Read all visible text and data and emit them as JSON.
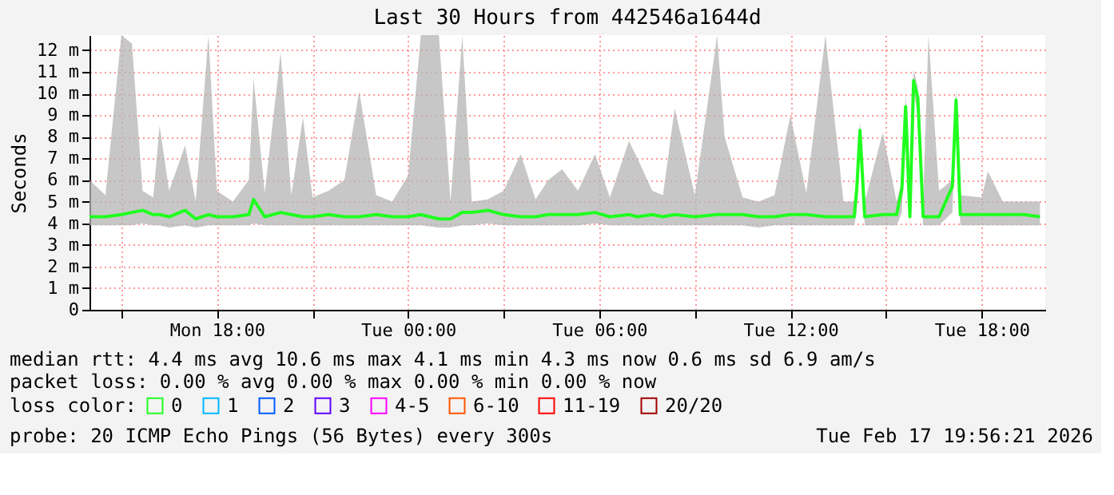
{
  "chart_data": {
    "type": "line",
    "title": "Last 30 Hours from 442546a1644d",
    "ylabel": "Seconds",
    "x": [
      "2026-02-16T14:00",
      "2026-02-16T14:30",
      "2026-02-16T15:00",
      "2026-02-16T15:20",
      "2026-02-16T15:40",
      "2026-02-16T16:00",
      "2026-02-16T16:12",
      "2026-02-16T16:30",
      "2026-02-16T17:00",
      "2026-02-16T17:20",
      "2026-02-16T17:44",
      "2026-02-16T18:00",
      "2026-02-16T18:30",
      "2026-02-16T19:00",
      "2026-02-16T19:09",
      "2026-02-16T19:30",
      "2026-02-16T20:00",
      "2026-02-16T20:20",
      "2026-02-16T20:42",
      "2026-02-16T21:00",
      "2026-02-16T21:30",
      "2026-02-16T22:00",
      "2026-02-16T22:28",
      "2026-02-16T23:00",
      "2026-02-16T23:30",
      "2026-02-17T00:00",
      "2026-02-17T00:24",
      "2026-02-17T00:58",
      "2026-02-17T01:20",
      "2026-02-17T01:42",
      "2026-02-17T02:00",
      "2026-02-17T02:30",
      "2026-02-17T03:00",
      "2026-02-17T03:32",
      "2026-02-17T04:00",
      "2026-02-17T04:24",
      "2026-02-17T04:50",
      "2026-02-17T05:20",
      "2026-02-17T05:52",
      "2026-02-17T06:20",
      "2026-02-17T06:56",
      "2026-02-17T07:12",
      "2026-02-17T07:40",
      "2026-02-17T08:00",
      "2026-02-17T08:22",
      "2026-02-17T09:00",
      "2026-02-17T09:42",
      "2026-02-17T09:56",
      "2026-02-17T10:30",
      "2026-02-17T11:00",
      "2026-02-17T11:30",
      "2026-02-17T12:00",
      "2026-02-17T12:30",
      "2026-02-17T13:06",
      "2026-02-17T13:40",
      "2026-02-17T14:00",
      "2026-02-17T14:05",
      "2026-02-17T14:11",
      "2026-02-17T14:20",
      "2026-02-17T14:54",
      "2026-02-17T15:20",
      "2026-02-17T15:30",
      "2026-02-17T15:37",
      "2026-02-17T15:45",
      "2026-02-17T15:52",
      "2026-02-17T16:00",
      "2026-02-17T16:10",
      "2026-02-17T16:20",
      "2026-02-17T16:40",
      "2026-02-17T17:05",
      "2026-02-17T17:12",
      "2026-02-17T17:20",
      "2026-02-17T18:00",
      "2026-02-17T18:12",
      "2026-02-17T18:40",
      "2026-02-17T19:20",
      "2026-02-17T19:50"
    ],
    "series": [
      {
        "name": "0",
        "color": "#20ff20",
        "values": [
          4.3,
          4.3,
          4.4,
          4.5,
          4.6,
          4.4,
          4.4,
          4.3,
          4.6,
          4.2,
          4.4,
          4.3,
          4.3,
          4.4,
          5.1,
          4.3,
          4.5,
          4.4,
          4.3,
          4.3,
          4.4,
          4.3,
          4.3,
          4.4,
          4.3,
          4.3,
          4.4,
          4.2,
          4.2,
          4.5,
          4.5,
          4.6,
          4.4,
          4.3,
          4.3,
          4.4,
          4.4,
          4.4,
          4.5,
          4.3,
          4.4,
          4.3,
          4.4,
          4.3,
          4.4,
          4.3,
          4.4,
          4.4,
          4.4,
          4.3,
          4.3,
          4.4,
          4.4,
          4.3,
          4.3,
          4.3,
          5.6,
          8.3,
          4.3,
          4.4,
          4.4,
          5.6,
          9.4,
          4.3,
          10.6,
          9.8,
          4.3,
          4.3,
          4.3,
          5.7,
          9.7,
          4.4,
          4.4,
          4.4,
          4.4,
          4.4,
          4.3
        ],
        "lower": [
          3.9,
          3.9,
          3.9,
          3.9,
          4.0,
          3.9,
          3.9,
          3.8,
          3.9,
          3.8,
          3.9,
          3.9,
          3.9,
          3.9,
          4.0,
          3.9,
          3.9,
          3.9,
          3.9,
          3.9,
          3.9,
          3.9,
          3.9,
          3.9,
          3.9,
          3.9,
          3.9,
          3.8,
          3.8,
          3.9,
          3.9,
          4.0,
          3.9,
          3.9,
          3.9,
          3.9,
          3.9,
          3.9,
          4.0,
          3.9,
          3.9,
          3.9,
          3.9,
          3.9,
          3.9,
          3.9,
          3.9,
          3.9,
          3.9,
          3.8,
          3.9,
          3.9,
          3.9,
          3.9,
          3.9,
          3.9,
          4.5,
          7.5,
          3.9,
          3.9,
          3.9,
          4.5,
          8.8,
          3.9,
          10.1,
          9.0,
          3.9,
          3.9,
          3.9,
          4.5,
          9.2,
          3.9,
          3.9,
          3.9,
          3.9,
          3.9,
          3.9
        ],
        "upper": [
          6.0,
          5.3,
          12.7,
          12.3,
          5.5,
          5.2,
          8.5,
          5.5,
          7.6,
          5.0,
          12.7,
          5.5,
          5.0,
          6.0,
          10.7,
          5.4,
          11.9,
          5.3,
          8.9,
          5.2,
          5.5,
          6.0,
          10.1,
          5.3,
          5.0,
          6.2,
          12.7,
          12.7,
          5.0,
          12.7,
          5.0,
          5.1,
          5.5,
          7.2,
          5.1,
          6.0,
          6.5,
          5.5,
          7.2,
          5.2,
          7.8,
          7.0,
          5.5,
          5.3,
          9.3,
          5.3,
          12.7,
          8.0,
          5.2,
          5.0,
          5.3,
          9.0,
          5.4,
          12.7,
          5.0,
          5.0,
          6.2,
          8.7,
          5.0,
          8.2,
          5.0,
          6.0,
          10.0,
          5.0,
          11.1,
          10.3,
          5.0,
          12.7,
          5.5,
          6.0,
          10.2,
          5.3,
          5.2,
          6.4,
          5.0,
          5.0,
          5.0
        ]
      },
      {
        "name": "1",
        "color": "#00b8ff",
        "values": [
          null,
          null,
          null,
          null,
          null,
          null,
          null,
          null,
          null,
          null,
          null,
          null,
          null,
          null,
          null,
          null,
          null,
          null,
          null,
          null,
          null,
          null,
          null,
          null,
          null,
          null,
          null,
          null,
          null,
          null,
          null,
          null,
          null,
          null,
          null,
          null,
          null,
          null,
          null,
          null,
          null,
          null,
          null,
          null,
          null,
          null,
          null,
          null,
          null,
          null,
          null,
          null,
          null,
          null,
          null,
          null,
          null,
          null,
          null,
          null,
          null,
          null,
          null,
          null,
          null,
          null,
          null,
          null,
          null,
          null,
          null,
          null,
          null,
          null,
          null,
          null,
          null
        ]
      },
      {
        "name": "2",
        "color": "#0059ff",
        "values": [
          null,
          null,
          null,
          null,
          null,
          null,
          null,
          null,
          null,
          null,
          null,
          null,
          null,
          null,
          null,
          null,
          null,
          null,
          null,
          null,
          null,
          null,
          null,
          null,
          null,
          null,
          null,
          null,
          null,
          null,
          null,
          null,
          null,
          null,
          null,
          null,
          null,
          null,
          null,
          null,
          null,
          null,
          null,
          null,
          null,
          null,
          null,
          null,
          null,
          null,
          null,
          null,
          null,
          null,
          null,
          null,
          null,
          null,
          null,
          null,
          null,
          null,
          null,
          null,
          null,
          null,
          null,
          null,
          null,
          null,
          null,
          null,
          null,
          null,
          null,
          null,
          null
        ]
      },
      {
        "name": "3",
        "color": "#5e00ff",
        "values": [
          null,
          null,
          null,
          null,
          null,
          null,
          null,
          null,
          null,
          null,
          null,
          null,
          null,
          null,
          null,
          null,
          null,
          null,
          null,
          null,
          null,
          null,
          null,
          null,
          null,
          null,
          null,
          null,
          null,
          null,
          null,
          null,
          null,
          null,
          null,
          null,
          null,
          null,
          null,
          null,
          null,
          null,
          null,
          null,
          null,
          null,
          null,
          null,
          null,
          null,
          null,
          null,
          null,
          null,
          null,
          null,
          null,
          null,
          null,
          null,
          null,
          null,
          null,
          null,
          null,
          null,
          null,
          null,
          null,
          null,
          null,
          null,
          null,
          null,
          null,
          null,
          null
        ]
      },
      {
        "name": "4-5",
        "color": "#ff00ff",
        "values": [
          null,
          null,
          null,
          null,
          null,
          null,
          null,
          null,
          null,
          null,
          null,
          null,
          null,
          null,
          null,
          null,
          null,
          null,
          null,
          null,
          null,
          null,
          null,
          null,
          null,
          null,
          null,
          null,
          null,
          null,
          null,
          null,
          null,
          null,
          null,
          null,
          null,
          null,
          null,
          null,
          null,
          null,
          null,
          null,
          null,
          null,
          null,
          null,
          null,
          null,
          null,
          null,
          null,
          null,
          null,
          null,
          null,
          null,
          null,
          null,
          null,
          null,
          null,
          null,
          null,
          null,
          null,
          null,
          null,
          null,
          null,
          null,
          null,
          null,
          null,
          null,
          null
        ]
      },
      {
        "name": "6-10",
        "color": "#ff5500",
        "values": [
          null,
          null,
          null,
          null,
          null,
          null,
          null,
          null,
          null,
          null,
          null,
          null,
          null,
          null,
          null,
          null,
          null,
          null,
          null,
          null,
          null,
          null,
          null,
          null,
          null,
          null,
          null,
          null,
          null,
          null,
          null,
          null,
          null,
          null,
          null,
          null,
          null,
          null,
          null,
          null,
          null,
          null,
          null,
          null,
          null,
          null,
          null,
          null,
          null,
          null,
          null,
          null,
          null,
          null,
          null,
          null,
          null,
          null,
          null,
          null,
          null,
          null,
          null,
          null,
          null,
          null,
          null,
          null,
          null,
          null,
          null,
          null,
          null,
          null,
          null,
          null,
          null
        ]
      },
      {
        "name": "11-19",
        "color": "#ff0000",
        "values": [
          null,
          null,
          null,
          null,
          null,
          null,
          null,
          null,
          null,
          null,
          null,
          null,
          null,
          null,
          null,
          null,
          null,
          null,
          null,
          null,
          null,
          null,
          null,
          null,
          null,
          null,
          null,
          null,
          null,
          null,
          null,
          null,
          null,
          null,
          null,
          null,
          null,
          null,
          null,
          null,
          null,
          null,
          null,
          null,
          null,
          null,
          null,
          null,
          null,
          null,
          null,
          null,
          null,
          null,
          null,
          null,
          null,
          null,
          null,
          null,
          null,
          null,
          null,
          null,
          null,
          null,
          null,
          null,
          null,
          null,
          null,
          null,
          null,
          null,
          null,
          null,
          null
        ]
      },
      {
        "name": "20/20",
        "color": "#a10000",
        "values": [
          null,
          null,
          null,
          null,
          null,
          null,
          null,
          null,
          null,
          null,
          null,
          null,
          null,
          null,
          null,
          null,
          null,
          null,
          null,
          null,
          null,
          null,
          null,
          null,
          null,
          null,
          null,
          null,
          null,
          null,
          null,
          null,
          null,
          null,
          null,
          null,
          null,
          null,
          null,
          null,
          null,
          null,
          null,
          null,
          null,
          null,
          null,
          null,
          null,
          null,
          null,
          null,
          null,
          null,
          null,
          null,
          null,
          null,
          null,
          null,
          null,
          null,
          null,
          null,
          null,
          null,
          null,
          null,
          null,
          null,
          null,
          null,
          null,
          null,
          null,
          null,
          null
        ]
      }
    ],
    "legend_title": "loss color:",
    "legend": "bottom left",
    "xlim": [
      "2026-02-16T14:00",
      "2026-02-17T20:00"
    ],
    "xticks": [
      {
        "value": "2026-02-16T15:00",
        "label": null
      },
      {
        "value": "2026-02-16T18:00",
        "label": "Mon 18:00"
      },
      {
        "value": "2026-02-16T21:00",
        "label": null
      },
      {
        "value": "2026-02-17T00:00",
        "label": "Tue 00:00"
      },
      {
        "value": "2026-02-17T03:00",
        "label": null
      },
      {
        "value": "2026-02-17T06:00",
        "label": "Tue 06:00"
      },
      {
        "value": "2026-02-17T09:00",
        "label": null
      },
      {
        "value": "2026-02-17T12:00",
        "label": "Tue 12:00"
      },
      {
        "value": "2026-02-17T15:00",
        "label": null
      },
      {
        "value": "2026-02-17T18:00",
        "label": "Tue 18:00"
      }
    ],
    "ylim": [
      0,
      12.7
    ],
    "yticks": [
      0,
      {
        "value": 1,
        "label": "1 m"
      },
      {
        "value": 2,
        "label": "2 m"
      },
      {
        "value": 3,
        "label": "3 m"
      },
      {
        "value": 4,
        "label": "4 m"
      },
      {
        "value": 5,
        "label": "5 m"
      },
      {
        "value": 6,
        "label": "6 m"
      },
      {
        "value": 7,
        "label": "7 m"
      },
      {
        "value": 8,
        "label": "8 m"
      },
      {
        "value": 9,
        "label": "9 m"
      },
      {
        "value": 10,
        "label": "10 m"
      },
      {
        "value": 11,
        "label": "11 m"
      },
      {
        "value": 12,
        "label": "12 m"
      }
    ],
    "grid": true,
    "annotations": [
      "median rtt:  4.4 ms avg  10.6 ms max  4.1 ms min  4.3 ms now  0.6 ms sd  6.9   am/s",
      "packet loss: 0.00 % avg  0.00 % max  0.00 % min  0.00 % now",
      "probe:       20 ICMP Echo Pings (56 Bytes) every 300s",
      "Tue Feb 17 19:56:21 2026"
    ]
  }
}
